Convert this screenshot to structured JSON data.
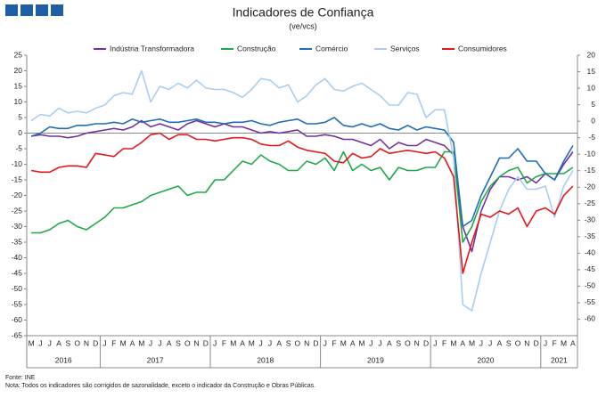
{
  "chart_data": {
    "type": "line",
    "title": "Indicadores de Confiança",
    "subtitle": "(ve/vcs)",
    "categories": [
      "M",
      "J",
      "J",
      "A",
      "S",
      "O",
      "N",
      "D",
      "J",
      "F",
      "M",
      "A",
      "M",
      "J",
      "J",
      "A",
      "S",
      "O",
      "N",
      "D",
      "J",
      "F",
      "M",
      "A",
      "M",
      "J",
      "J",
      "A",
      "S",
      "O",
      "N",
      "D",
      "J",
      "F",
      "M",
      "A",
      "M",
      "J",
      "J",
      "A",
      "S",
      "O",
      "N",
      "D",
      "J",
      "F",
      "M",
      "A",
      "M",
      "J",
      "J",
      "A",
      "S",
      "O",
      "N",
      "D",
      "J",
      "F",
      "M",
      "A"
    ],
    "year_groups": [
      {
        "label": "2016",
        "months": 8
      },
      {
        "label": "2017",
        "months": 12
      },
      {
        "label": "2018",
        "months": 12
      },
      {
        "label": "2019",
        "months": 12
      },
      {
        "label": "2020",
        "months": 12
      },
      {
        "label": "2021",
        "months": 4
      }
    ],
    "series": [
      {
        "name": "Indústria Transformadora",
        "color": "#7030a0",
        "values": [
          -1,
          -0.5,
          -1,
          -1,
          -1.5,
          -1,
          0,
          0.5,
          1,
          1.5,
          1,
          2,
          4,
          2,
          3,
          2,
          1,
          3,
          4,
          3,
          2,
          3,
          2,
          2,
          1,
          0,
          0.5,
          0,
          0.5,
          1,
          -1,
          -1,
          -0.5,
          -1,
          -2,
          -2,
          -3,
          -4,
          -2,
          -5,
          -3,
          -4,
          -4,
          -2,
          -3,
          -4,
          -7,
          -30,
          -38,
          -25,
          -18,
          -14,
          -14,
          -15,
          -14,
          -16,
          -13,
          -15,
          -10,
          -6
        ]
      },
      {
        "name": "Construção",
        "color": "#1ea84a",
        "values": [
          -32,
          -32,
          -31,
          -29,
          -28,
          -30,
          -31,
          -29,
          -27,
          -24,
          -24,
          -23,
          -22,
          -20,
          -19,
          -18,
          -17,
          -20,
          -19,
          -19,
          -15,
          -15,
          -12,
          -9,
          -10,
          -7,
          -9,
          -10,
          -12,
          -12,
          -9,
          -10,
          -8,
          -12,
          -6,
          -12,
          -10,
          -12,
          -11,
          -15,
          -11,
          -12,
          -12,
          -11,
          -11,
          -6,
          -6,
          -35,
          -30,
          -22,
          -17,
          -14,
          -12,
          -11,
          -16,
          -14,
          -13,
          -13,
          -13,
          -11
        ]
      },
      {
        "name": "Comércio",
        "color": "#1f6db5",
        "values": [
          -1,
          0,
          2,
          1.5,
          1.5,
          2.5,
          2.5,
          3,
          3,
          3.5,
          3,
          4.5,
          3.5,
          4,
          4.5,
          3.5,
          3.5,
          4,
          4.5,
          3.5,
          3.5,
          3,
          3.5,
          3.5,
          4,
          3,
          2.5,
          3.5,
          4,
          4.5,
          3,
          3,
          3.5,
          5,
          2.5,
          2,
          3,
          2,
          3,
          1.5,
          1,
          2.5,
          1,
          2,
          1.5,
          1,
          -3,
          -30,
          -28,
          -20,
          -14,
          -8,
          -8,
          -5,
          -9,
          -9,
          -13,
          -15,
          -9,
          -4
        ]
      },
      {
        "name": "Serviços",
        "color": "#a9cdf0",
        "values": [
          4,
          6,
          5.5,
          8,
          6.5,
          7,
          6.5,
          8,
          9,
          12,
          13,
          12.5,
          20,
          10,
          15,
          14,
          16,
          14.5,
          17,
          14.5,
          14,
          14,
          13,
          11.5,
          14,
          17.5,
          17,
          14.5,
          15.5,
          10,
          12,
          15.5,
          17.5,
          14,
          13.5,
          15,
          16,
          14,
          12,
          9,
          9,
          13,
          12.5,
          5,
          7.5,
          7.5,
          -8,
          -55,
          -57,
          -45,
          -35,
          -25,
          -18,
          -14,
          -18,
          -18,
          -17,
          -27,
          -17,
          -12
        ]
      },
      {
        "name": "Consumidores",
        "color": "#e3171b",
        "values": [
          -12,
          -12.5,
          -12.5,
          -11,
          -10.5,
          -10.5,
          -11,
          -6.5,
          -7,
          -7.5,
          -5,
          -5,
          -3,
          -0.5,
          0,
          -2,
          -0.5,
          -0.5,
          -2,
          -2,
          -2.5,
          -2,
          -1.5,
          -1.5,
          -2,
          -3.5,
          -4,
          -4,
          -2.5,
          -4.5,
          -5.5,
          -6,
          -6.5,
          -9,
          -9.5,
          -6.5,
          -8,
          -7.5,
          -5,
          -6.5,
          -6,
          -5.5,
          -6,
          -6.5,
          -6,
          -8,
          -14,
          -45,
          -35,
          -26,
          -27,
          -25,
          -26,
          -24,
          -30,
          -25,
          -24,
          -26,
          -20,
          -17
        ]
      }
    ],
    "ylim": [
      -65,
      25
    ],
    "yticks": [
      25,
      20,
      15,
      10,
      5,
      0,
      -5,
      -10,
      -15,
      -20,
      -25,
      -30,
      -35,
      -40,
      -45,
      -50,
      -55,
      -60,
      -65
    ],
    "y2lim": [
      -65,
      20
    ],
    "y2ticks": [
      20,
      15,
      10,
      5,
      0,
      -5,
      -10,
      -15,
      -20,
      -25,
      -30,
      -35,
      -40,
      -45,
      -50,
      -55,
      -60
    ],
    "grid": false,
    "legend": "top",
    "source": "Fonte: INE",
    "note": "Nota: Todos os indicadores são corrigidos de sazonalidade, exceto o indicador da Construção e Obras Públicas."
  }
}
